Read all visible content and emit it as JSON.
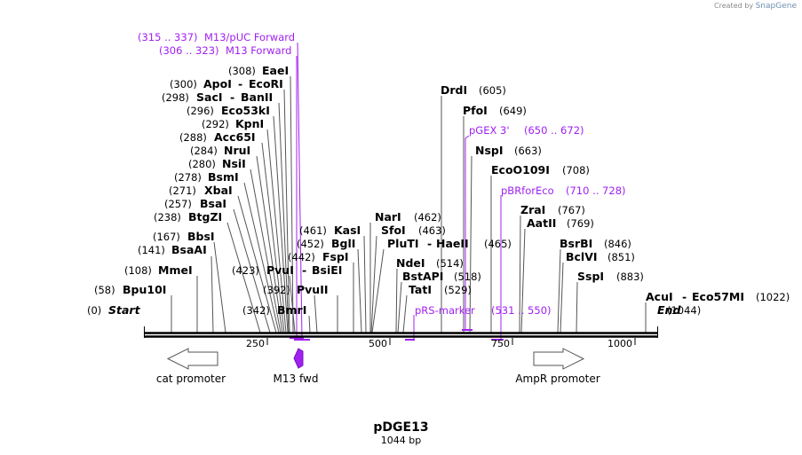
{
  "branding": {
    "created_by": "Created by",
    "app": "SnapGene"
  },
  "plasmid": {
    "name": "pDGE13",
    "length": "1044 bp"
  },
  "ruler": {
    "ticks": [
      "250",
      "500",
      "750",
      "1000"
    ],
    "start_label": "Start",
    "start_pos": "(0)",
    "end_label": "End",
    "end_pos": "(1044)"
  },
  "enzymes": [
    {
      "name": "Bpu10I",
      "pos": "(58)"
    },
    {
      "name": "MmeI",
      "pos": "(108)"
    },
    {
      "name": "BsaAI",
      "pos": "(141)"
    },
    {
      "name": "BbsI",
      "pos": "(167)"
    },
    {
      "name": "BtgZI",
      "pos": "(238)"
    },
    {
      "name": "BsaI",
      "pos": "(257)"
    },
    {
      "name": "XbaI",
      "pos": "(271)"
    },
    {
      "name": "BsmI",
      "pos": "(278)"
    },
    {
      "name": "NsiI",
      "pos": "(280)"
    },
    {
      "name": "NruI",
      "pos": "(284)"
    },
    {
      "name": "Acc65I",
      "pos": "(288)"
    },
    {
      "name": "KpnI",
      "pos": "(292)"
    },
    {
      "name": "Eco53kI",
      "pos": "(296)"
    },
    {
      "name": "SacI",
      "name2": "BanII",
      "pos": "(298)"
    },
    {
      "name": "ApoI",
      "name2": "EcoRI",
      "pos": "(300)"
    },
    {
      "name": "EaeI",
      "pos": "(308)"
    },
    {
      "name": "BmrI",
      "pos": "(342)"
    },
    {
      "name": "PvuII",
      "pos": "(392)"
    },
    {
      "name": "PvuI",
      "name2": "BsiEI",
      "pos": "(423)"
    },
    {
      "name": "FspI",
      "pos": "(442)"
    },
    {
      "name": "BglI",
      "pos": "(452)"
    },
    {
      "name": "KasI",
      "pos": "(461)"
    },
    {
      "name": "NarI",
      "pos": "(462)"
    },
    {
      "name": "SfoI",
      "pos": "(463)"
    },
    {
      "name": "PluTI",
      "name2": "HaeII",
      "pos": "(465)"
    },
    {
      "name": "NdeI",
      "pos": "(514)"
    },
    {
      "name": "BstAPI",
      "pos": "(518)"
    },
    {
      "name": "TatI",
      "pos": "(529)"
    },
    {
      "name": "DrdI",
      "pos": "(605)"
    },
    {
      "name": "PfoI",
      "pos": "(649)"
    },
    {
      "name": "NspI",
      "pos": "(663)"
    },
    {
      "name": "EcoO109I",
      "pos": "(708)"
    },
    {
      "name": "ZraI",
      "pos": "(767)"
    },
    {
      "name": "AatII",
      "pos": "(769)"
    },
    {
      "name": "BsrBI",
      "pos": "(846)"
    },
    {
      "name": "BclVI",
      "pos": "(851)"
    },
    {
      "name": "SspI",
      "pos": "(883)"
    },
    {
      "name": "AcuI",
      "name2": "Eco57MI",
      "pos": "(1022)"
    }
  ],
  "primers": [
    {
      "name": "M13/pUC Forward",
      "range": "(315 .. 337)"
    },
    {
      "name": "M13 Forward",
      "range": "(306 .. 323)"
    },
    {
      "name": "pGEX 3'",
      "range": "(650 .. 672)"
    },
    {
      "name": "pBRforEco",
      "range": "(710 .. 728)"
    },
    {
      "name": "pRS-marker",
      "range": "(531 .. 550)"
    }
  ],
  "features": [
    {
      "name": "cat promoter"
    },
    {
      "name": "M13 fwd"
    },
    {
      "name": "AmpR promoter"
    }
  ],
  "colors": {
    "primer": "#a020f0",
    "arrow_fill": "#a020f0"
  }
}
